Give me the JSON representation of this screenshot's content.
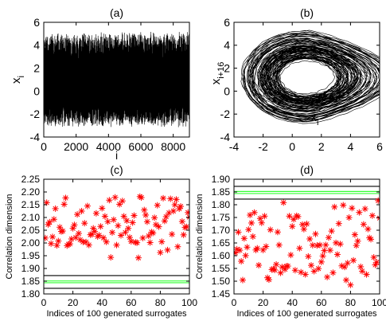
{
  "chart_data": [
    {
      "panel": "(a)",
      "type": "line",
      "title": "(a)",
      "xlabel": "i",
      "ylabel": "x_i",
      "ylabel_main": "x",
      "ylabel_sub": "i",
      "xlim": [
        0,
        9000
      ],
      "ylim": [
        -4,
        6
      ],
      "xticks": [
        0,
        2000,
        4000,
        6000,
        8000
      ],
      "yticks": [
        -4,
        -2,
        0,
        2,
        4,
        6
      ],
      "series": [
        {
          "color": "#000000",
          "n_points": 9000,
          "envelope_max": 4.9,
          "envelope_min": -2.9
        }
      ]
    },
    {
      "panel": "(b)",
      "type": "line",
      "title": "(b)",
      "xlabel": "x_i",
      "xlabel_main": "x",
      "xlabel_sub": "i",
      "ylabel": "x_{i+16}",
      "ylabel_main": "x",
      "ylabel_sub": "i+16",
      "xlim": [
        -4,
        6
      ],
      "ylim": [
        -4,
        6
      ],
      "xticks": [
        -4,
        -2,
        0,
        2,
        4,
        6
      ],
      "yticks": [
        -4,
        -2,
        0,
        2,
        4,
        6
      ],
      "attractor": {
        "outer_x": [
          -3.5,
          5.5
        ],
        "outer_y": [
          -2.8,
          5.2
        ],
        "hole_x": [
          -1.2,
          1.5
        ],
        "hole_y": [
          -0.5,
          1.6
        ]
      }
    },
    {
      "panel": "(c)",
      "type": "scatter",
      "title": "(c)",
      "xlabel": "Indices of 100 generated surrogates",
      "ylabel": "Correlation dimension",
      "xlim": [
        0,
        100
      ],
      "ylim": [
        1.8,
        2.25
      ],
      "xticks": [
        0,
        20,
        40,
        60,
        80,
        100
      ],
      "yticks": [
        "1.80",
        "1.85",
        "1.90",
        "1.95",
        "2.00",
        "2.05",
        "2.10",
        "2.15",
        "2.20",
        "2.25"
      ],
      "marker": "*",
      "marker_color": "#ff0000",
      "hlines": [
        {
          "y": 1.872,
          "color": "#000000"
        },
        {
          "y": 1.851,
          "color": "#33ff33"
        },
        {
          "y": 1.844,
          "color": "#33ff33"
        },
        {
          "y": 1.822,
          "color": "#000000"
        }
      ],
      "y_range_shown": [
        1.93,
        2.2
      ]
    },
    {
      "panel": "(d)",
      "type": "scatter",
      "title": "(d)",
      "xlabel": "Indices of 100 generated surrogates",
      "ylabel": "Correlation dimension",
      "xlim": [
        0,
        100
      ],
      "ylim": [
        1.45,
        1.9
      ],
      "xticks": [
        0,
        20,
        40,
        60,
        80,
        100
      ],
      "yticks": [
        "1.45",
        "1.50",
        "1.55",
        "1.60",
        "1.65",
        "1.70",
        "1.75",
        "1.80",
        "1.85",
        "1.90"
      ],
      "marker": "*",
      "marker_color": "#ff0000",
      "hlines": [
        {
          "y": 1.872,
          "color": "#000000"
        },
        {
          "y": 1.852,
          "color": "#33ff33"
        },
        {
          "y": 1.844,
          "color": "#33ff33"
        },
        {
          "y": 1.822,
          "color": "#000000"
        }
      ],
      "y_range_shown": [
        1.47,
        1.835
      ]
    }
  ]
}
